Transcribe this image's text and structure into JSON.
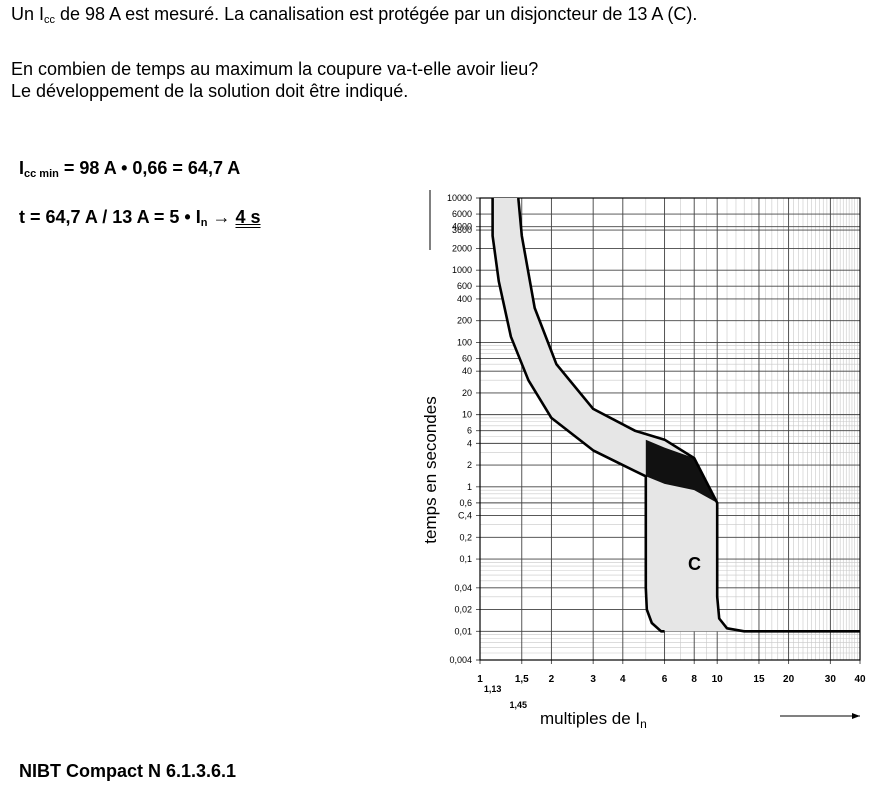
{
  "question": {
    "line1_pre": "Un I",
    "line1_sub": "cc",
    "line1_post": " de 98 A est mesuré. La canalisation est protégée par un disjoncteur de 13 A (C).",
    "line2": "En combien de temps au maximum la coupure va-t-elle avoir lieu?",
    "line3": "Le développement de la solution doit être indiqué."
  },
  "solution": {
    "eq1_pre": "I",
    "eq1_sub": "cc min",
    "eq1_post": " = 98 A • 0,66 = 64,7 A",
    "eq2_pre": "t = 64,7 A / 13 A = 5 • I",
    "eq2_sub": "n",
    "eq2_arrow": " → ",
    "eq2_result": "4 s"
  },
  "reference": "NIBT Compact N 6.1.3.6.1",
  "chart_data": {
    "type": "line",
    "ylabel": "temps en secondes",
    "xlabel_pre": "multiples de I",
    "xlabel_sub": "n",
    "y_ticks": [
      "10000",
      "6000",
      "4000",
      "3600",
      "2000",
      "1000",
      "600",
      "400",
      "200",
      "100",
      "60",
      "40",
      "20",
      "10",
      "6",
      "4",
      "2",
      "1",
      "0,6",
      "C,4",
      "0,2",
      "0,1",
      "0,04",
      "0,02",
      "0,01",
      "0,004"
    ],
    "y_tick_values": [
      10000,
      6000,
      4000,
      3600,
      2000,
      1000,
      600,
      400,
      200,
      100,
      60,
      40,
      20,
      10,
      6,
      4,
      2,
      1,
      0.6,
      0.4,
      0.2,
      0.1,
      0.04,
      0.02,
      0.01,
      0.004
    ],
    "x_ticks": [
      "1",
      "1,5",
      "2",
      "3",
      "4",
      "6",
      "8",
      "10",
      "15",
      "20",
      "30",
      "40"
    ],
    "x_tick_values": [
      1,
      1.5,
      2,
      3,
      4,
      6,
      8,
      10,
      15,
      20,
      30,
      40
    ],
    "x_extra_ticks": [
      "1,13",
      "1,45"
    ],
    "curve_label": "C",
    "series": [
      {
        "values_x": [
          1.13,
          1.13,
          1.2,
          1.35,
          1.6,
          2,
          3,
          4,
          5,
          5,
          5.05,
          5.3,
          5.8,
          6
        ],
        "values_y": [
          10000,
          3000,
          700,
          120,
          30,
          9,
          3.2,
          2,
          1.4,
          0.04,
          0.02,
          0.013,
          0.01,
          0.01
        ]
      },
      {
        "values_x": [
          1.45,
          1.5,
          1.7,
          2.1,
          3,
          4.5,
          6,
          8,
          10,
          10,
          10.2,
          11,
          13,
          40
        ],
        "values_y": [
          10000,
          3000,
          300,
          50,
          12,
          6,
          4.5,
          2.5,
          0.6,
          0.03,
          0.015,
          0.011,
          0.01,
          0.01
        ]
      }
    ]
  }
}
